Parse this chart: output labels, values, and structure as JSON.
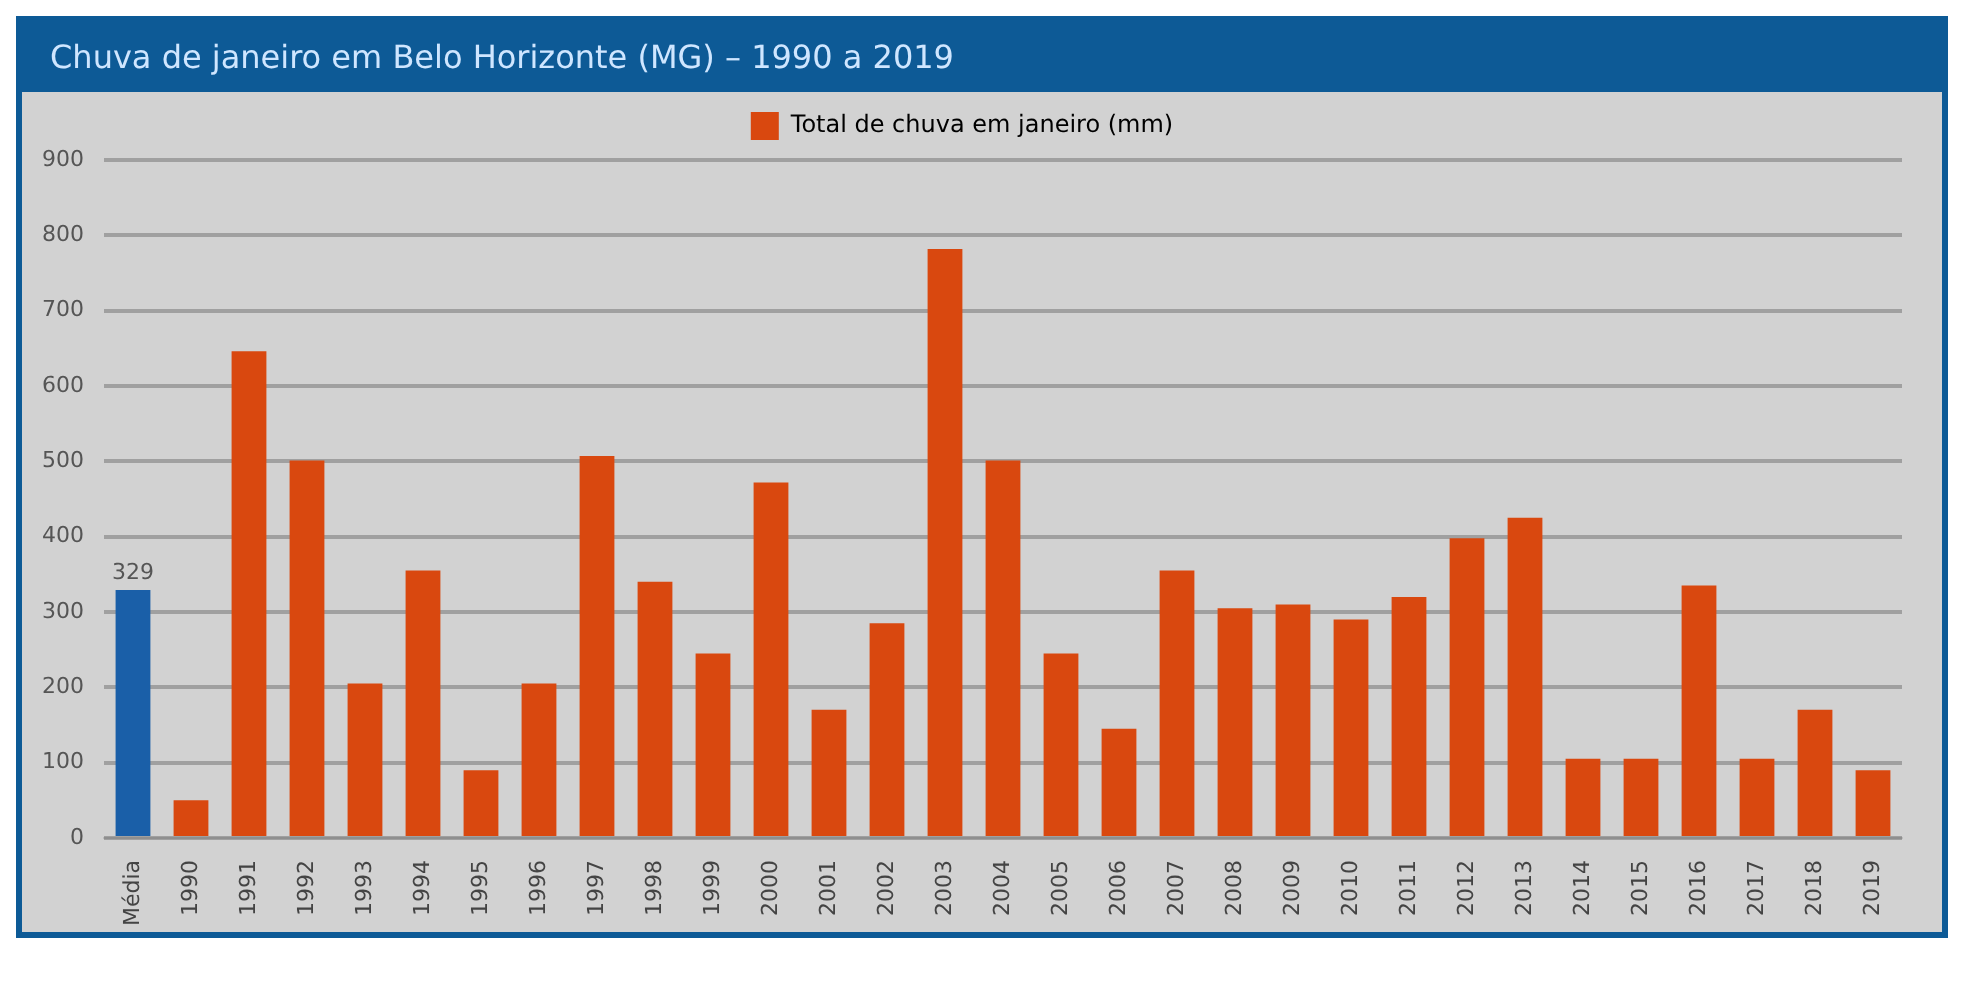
{
  "chart_data": {
    "type": "bar",
    "title": "Chuva de janeiro em Belo Horizonte (MG) – 1990 a 2019",
    "categories": [
      "Média",
      "1990",
      "1991",
      "1992",
      "1993",
      "1994",
      "1995",
      "1996",
      "1997",
      "1998",
      "1999",
      "2000",
      "2001",
      "2002",
      "2003",
      "2004",
      "2005",
      "2006",
      "2007",
      "2008",
      "2009",
      "2010",
      "2011",
      "2012",
      "2013",
      "2014",
      "2015",
      "2016",
      "2017",
      "2018",
      "2019"
    ],
    "series": [
      {
        "name": "Total de chuva em janeiro (mm)",
        "color": "#d9480f",
        "colors": [
          "#1a5fa8",
          "#d9480f",
          "#d9480f",
          "#d9480f",
          "#d9480f",
          "#d9480f",
          "#d9480f",
          "#d9480f",
          "#d9480f",
          "#d9480f",
          "#d9480f",
          "#d9480f",
          "#d9480f",
          "#d9480f",
          "#d9480f",
          "#d9480f",
          "#d9480f",
          "#d9480f",
          "#d9480f",
          "#d9480f",
          "#d9480f",
          "#d9480f",
          "#d9480f",
          "#d9480f",
          "#d9480f",
          "#d9480f",
          "#d9480f",
          "#d9480f",
          "#d9480f",
          "#d9480f",
          "#d9480f"
        ],
        "values": [
          329,
          50,
          646,
          501,
          205,
          355,
          90,
          205,
          507,
          340,
          245,
          472,
          170,
          285,
          782,
          501,
          245,
          145,
          355,
          305,
          310,
          290,
          320,
          398,
          425,
          105,
          105,
          335,
          105,
          170,
          90
        ],
        "value_labels": [
          "329",
          null,
          null,
          null,
          null,
          null,
          null,
          null,
          null,
          null,
          null,
          null,
          null,
          null,
          null,
          null,
          null,
          null,
          null,
          null,
          null,
          null,
          null,
          null,
          null,
          null,
          null,
          null,
          null,
          null,
          null
        ]
      }
    ],
    "ylim": [
      0,
      900
    ],
    "yticks": [
      0,
      100,
      200,
      300,
      400,
      500,
      600,
      700,
      800,
      900
    ],
    "grid": "y",
    "legend": "top"
  }
}
